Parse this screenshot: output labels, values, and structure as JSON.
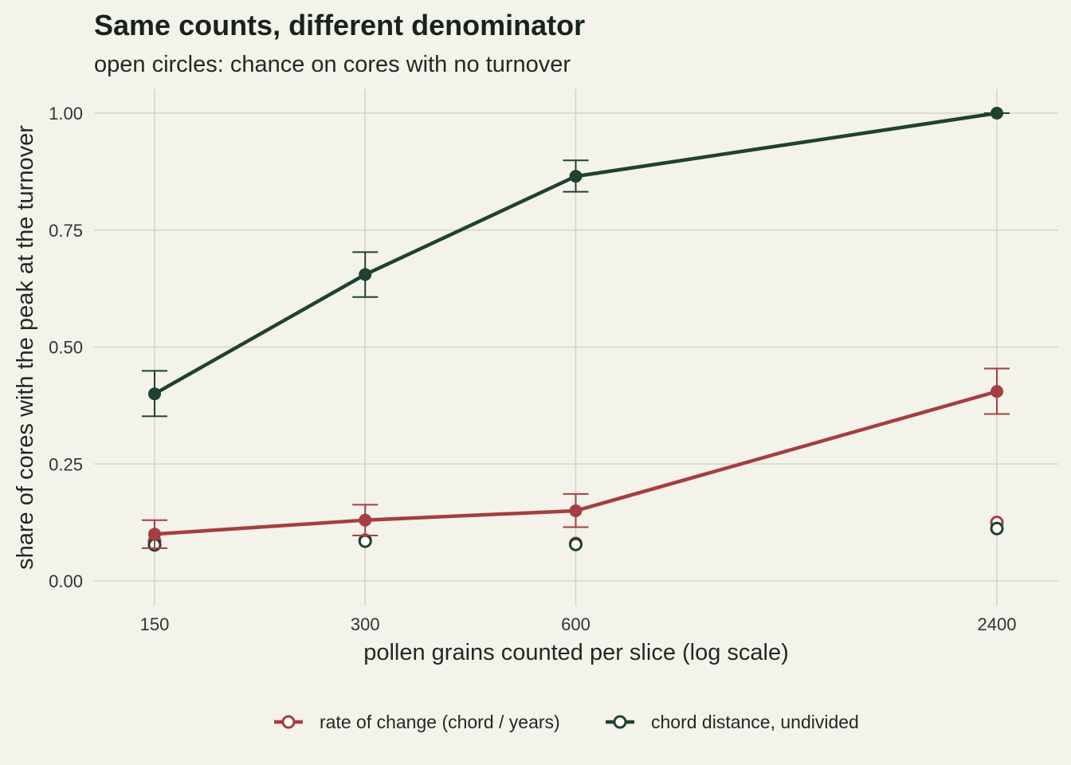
{
  "chart_data": {
    "type": "line",
    "title": "Same counts, different denominator",
    "subtitle": "open circles: chance on cores with no turnover",
    "xlabel": "pollen grains counted per slice (log scale)",
    "ylabel": "share of cores with the peak at the turnover",
    "x_scale": "log",
    "x": [
      150,
      300,
      600,
      2400
    ],
    "x_tick_labels": [
      "150",
      "300",
      "600",
      "2400"
    ],
    "y_ticks": [
      0,
      0.25,
      0.5,
      0.75,
      1
    ],
    "y_tick_labels": [
      "0.00",
      "0.25",
      "0.50",
      "0.75",
      "1.00"
    ],
    "ylim": [
      -0.02,
      1.05
    ],
    "grid": true,
    "legend_position": "bottom",
    "series": [
      {
        "name": "rate of change (chord / years)",
        "color": "#a63d40",
        "values": [
          0.1,
          0.13,
          0.15,
          0.405
        ],
        "lower": [
          0.07,
          0.097,
          0.115,
          0.357
        ],
        "upper": [
          0.13,
          0.163,
          0.186,
          0.454
        ],
        "chance": [
          0.085,
          0.087,
          0.08,
          0.125
        ]
      },
      {
        "name": "chord distance, undivided",
        "color": "#1e4230",
        "values": [
          0.4,
          0.655,
          0.865,
          1.0
        ],
        "lower": [
          0.352,
          0.607,
          0.832,
          1.0
        ],
        "upper": [
          0.449,
          0.703,
          0.899,
          1.0
        ],
        "chance": [
          0.077,
          0.085,
          0.078,
          0.112
        ]
      }
    ]
  }
}
